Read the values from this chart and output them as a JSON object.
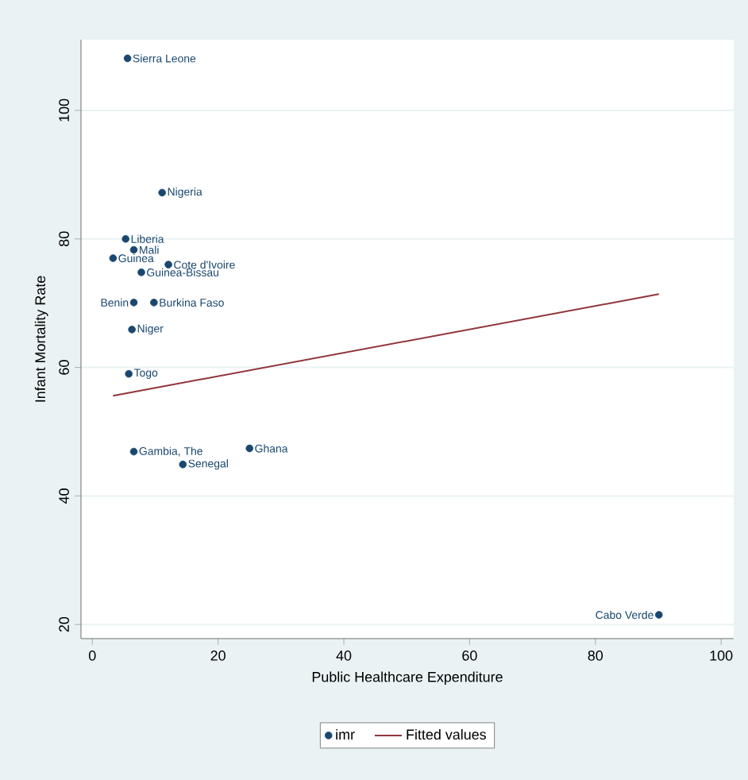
{
  "chart_data": {
    "type": "scatter",
    "xlabel": "Public Healthcare Expenditure",
    "ylabel": "Infant Mortality Rate",
    "xlim": [
      -1.8,
      102
    ],
    "ylim": [
      17.8,
      111
    ],
    "xticks": [
      0,
      20,
      40,
      60,
      80,
      100
    ],
    "yticks": [
      20,
      40,
      60,
      80,
      100
    ],
    "grid": "y",
    "legend": "bottom",
    "series": [
      {
        "name": "imr",
        "type": "scatter",
        "marker": "circle",
        "color": "#1a476f",
        "x": [
          5.6,
          11.1,
          5.3,
          6.6,
          3.3,
          12.1,
          7.8,
          6.6,
          9.8,
          6.3,
          5.8,
          6.6,
          25.0,
          14.4,
          90.1
        ],
        "values": [
          108.1,
          87.2,
          80.0,
          78.3,
          77.0,
          76.0,
          74.8,
          70.1,
          70.1,
          65.9,
          59.0,
          46.9,
          47.4,
          44.9,
          21.5
        ]
      },
      {
        "name": "Fitted values",
        "type": "line",
        "marker": "none",
        "color": "#90353b",
        "x": [
          3.3,
          90.1
        ],
        "values": [
          55.6,
          71.4
        ]
      }
    ],
    "annotations": [
      {
        "text": "Sierra Leone",
        "x": 5.6,
        "y": 108.1
      },
      {
        "text": "Nigeria",
        "x": 11.1,
        "y": 87.2
      },
      {
        "text": "Liberia",
        "x": 5.3,
        "y": 80.0
      },
      {
        "text": "Mali",
        "x": 6.6,
        "y": 78.3
      },
      {
        "text": "Guinea",
        "x": 3.3,
        "y": 77.0
      },
      {
        "text": "Cote d'Ivoire",
        "x": 12.1,
        "y": 76.0
      },
      {
        "text": "Guinea-Bissau",
        "x": 7.8,
        "y": 74.8
      },
      {
        "text": "Benin",
        "x": 6.6,
        "y": 70.1
      },
      {
        "text": "Burkina Faso",
        "x": 9.8,
        "y": 70.1
      },
      {
        "text": "Niger",
        "x": 6.3,
        "y": 65.9
      },
      {
        "text": "Togo",
        "x": 5.8,
        "y": 59.0
      },
      {
        "text": "Gambia, The",
        "x": 6.6,
        "y": 46.9
      },
      {
        "text": "Ghana",
        "x": 25.0,
        "y": 47.4
      },
      {
        "text": "Senegal",
        "x": 14.4,
        "y": 44.9
      },
      {
        "text": "Cabo Verde",
        "x": 90.1,
        "y": 21.5
      }
    ]
  }
}
